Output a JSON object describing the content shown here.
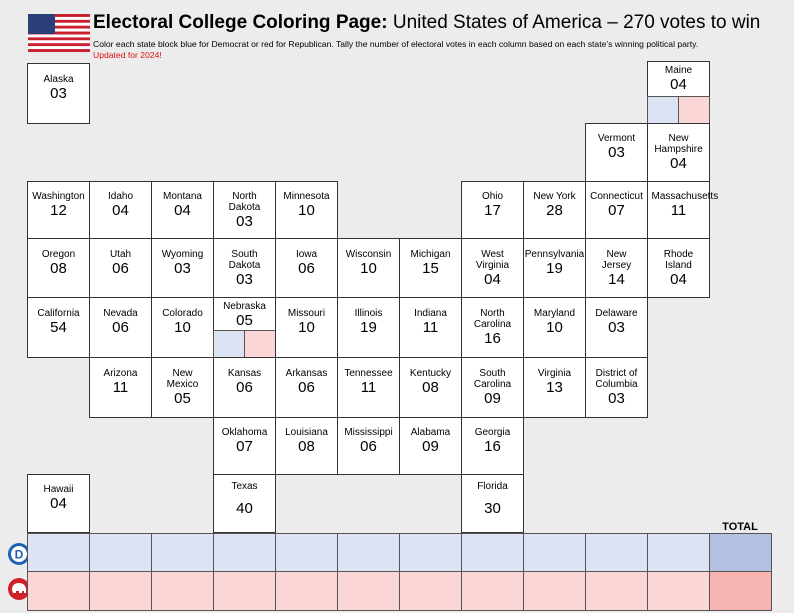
{
  "header": {
    "title_bold": "Electoral College Coloring Page:",
    "title_rest": "United States of America – 270 votes to win",
    "instructions": "Color each state block blue for Democrat or red for Republican. Tally the number of electoral votes in each column based on each state’s winning political party.",
    "update_note": "Updated for 2024!"
  },
  "states": [
    {
      "name": "Alaska",
      "votes": "03"
    },
    {
      "name": "Maine",
      "votes": "04"
    },
    {
      "name": "Vermont",
      "votes": "03"
    },
    {
      "name": "New Hampshire",
      "votes": "04"
    },
    {
      "name": "Washington",
      "votes": "12"
    },
    {
      "name": "Idaho",
      "votes": "04"
    },
    {
      "name": "Montana",
      "votes": "04"
    },
    {
      "name": "North Dakota",
      "votes": "03"
    },
    {
      "name": "Minnesota",
      "votes": "10"
    },
    {
      "name": "Ohio",
      "votes": "17"
    },
    {
      "name": "New York",
      "votes": "28"
    },
    {
      "name": "Connecticut",
      "votes": "07"
    },
    {
      "name": "Massachusetts",
      "votes": "11"
    },
    {
      "name": "Oregon",
      "votes": "08"
    },
    {
      "name": "Utah",
      "votes": "06"
    },
    {
      "name": "Wyoming",
      "votes": "03"
    },
    {
      "name": "South Dakota",
      "votes": "03"
    },
    {
      "name": "Iowa",
      "votes": "06"
    },
    {
      "name": "Wisconsin",
      "votes": "10"
    },
    {
      "name": "Michigan",
      "votes": "15"
    },
    {
      "name": "West Virginia",
      "votes": "04"
    },
    {
      "name": "Pennsylvania",
      "votes": "19"
    },
    {
      "name": "New Jersey",
      "votes": "14"
    },
    {
      "name": "Rhode Island",
      "votes": "04"
    },
    {
      "name": "California",
      "votes": "54"
    },
    {
      "name": "Nevada",
      "votes": "06"
    },
    {
      "name": "Colorado",
      "votes": "10"
    },
    {
      "name": "Nebraska",
      "votes": "05"
    },
    {
      "name": "Missouri",
      "votes": "10"
    },
    {
      "name": "Illinois",
      "votes": "19"
    },
    {
      "name": "Indiana",
      "votes": "11"
    },
    {
      "name": "North Carolina",
      "votes": "16"
    },
    {
      "name": "Maryland",
      "votes": "10"
    },
    {
      "name": "Delaware",
      "votes": "03"
    },
    {
      "name": "Arizona",
      "votes": "11"
    },
    {
      "name": "New Mexico",
      "votes": "05"
    },
    {
      "name": "Kansas",
      "votes": "06"
    },
    {
      "name": "Arkansas",
      "votes": "06"
    },
    {
      "name": "Tennessee",
      "votes": "11"
    },
    {
      "name": "Kentucky",
      "votes": "08"
    },
    {
      "name": "South Carolina",
      "votes": "09"
    },
    {
      "name": "Virginia",
      "votes": "13"
    },
    {
      "name": "District of Columbia",
      "votes": "03"
    },
    {
      "name": "Oklahoma",
      "votes": "07"
    },
    {
      "name": "Louisiana",
      "votes": "08"
    },
    {
      "name": "Mississippi",
      "votes": "06"
    },
    {
      "name": "Alabama",
      "votes": "09"
    },
    {
      "name": "Georgia",
      "votes": "16"
    },
    {
      "name": "Hawaii",
      "votes": "04"
    },
    {
      "name": "Texas",
      "votes": "40"
    },
    {
      "name": "Florida",
      "votes": "30"
    }
  ],
  "tally": {
    "total_label": "TOTAL",
    "dem_label": "D"
  }
}
